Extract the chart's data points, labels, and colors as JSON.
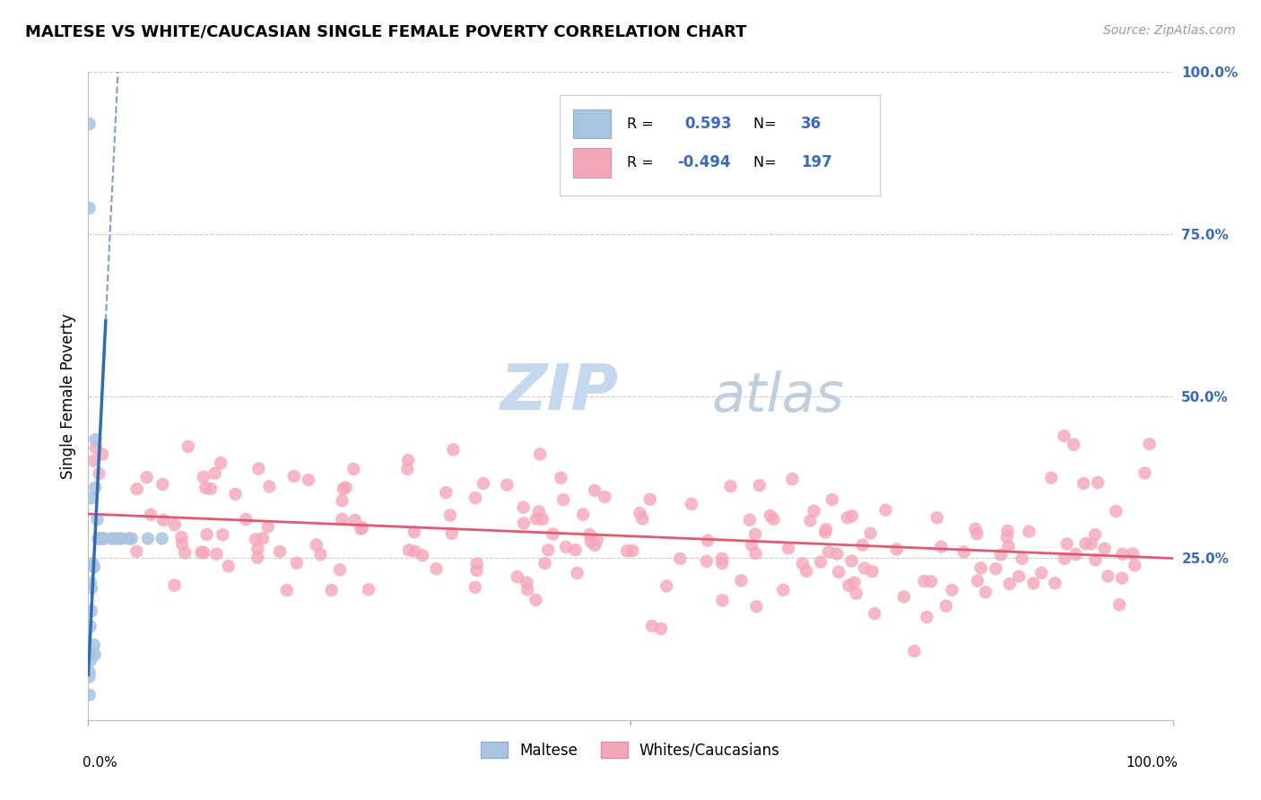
{
  "title": "MALTESE VS WHITE/CAUCASIAN SINGLE FEMALE POVERTY CORRELATION CHART",
  "source": "Source: ZipAtlas.com",
  "ylabel": "Single Female Poverty",
  "legend_label1": "Maltese",
  "legend_label2": "Whites/Caucasians",
  "R_maltese": 0.593,
  "N_maltese": 36,
  "R_white": -0.494,
  "N_white": 197,
  "color_maltese": "#a8c4e0",
  "color_white": "#f4a7b9",
  "color_maltese_line": "#2e6db5",
  "color_white_line": "#e05a72",
  "watermark_zip": "#c5d8ed",
  "watermark_atlas": "#c0cfe0",
  "background_color": "#ffffff",
  "legend_text_color": "#3a6abf",
  "grid_color": "#cccccc",
  "right_tick_color": "#3a6abf"
}
